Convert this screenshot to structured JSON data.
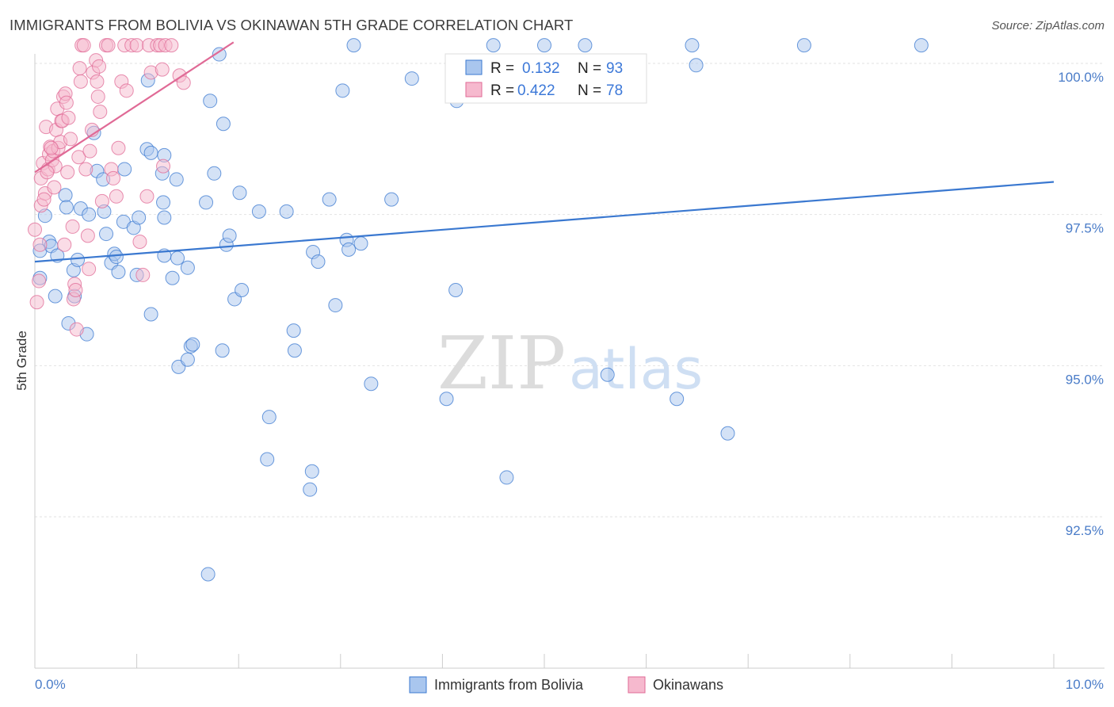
{
  "title": "IMMIGRANTS FROM BOLIVIA VS OKINAWAN 5TH GRADE CORRELATION CHART",
  "source": "Source: ZipAtlas.com",
  "watermark": {
    "zip": "ZIP",
    "atlas": "atlas"
  },
  "legend": {
    "r_label": "R =",
    "n_label": "N =",
    "rows": [
      {
        "r": "0.132",
        "n": "93"
      },
      {
        "r": "0.422",
        "n": "78"
      }
    ]
  },
  "chart_data": {
    "type": "scatter",
    "title": "IMMIGRANTS FROM BOLIVIA VS OKINAWAN 5TH GRADE CORRELATION CHART",
    "xlabel": "",
    "ylabel": "5th Grade",
    "xlim": [
      0,
      10
    ],
    "ylim": [
      90.0,
      100.35
    ],
    "x_tick_labels": {
      "min": "0.0%",
      "max": "10.0%"
    },
    "y_ticks": [
      92.5,
      95.0,
      97.5,
      100.0
    ],
    "y_tick_labels": [
      "92.5%",
      "95.0%",
      "97.5%",
      "100.0%"
    ],
    "grid": true,
    "legend_position": "top-center",
    "colors": {
      "blue": "#3a78d0",
      "pink": "#e06a96",
      "blue_fill": "#a9c6ee",
      "pink_fill": "#f6b9ce"
    },
    "series": [
      {
        "name": "Immigrants from Bolivia",
        "color": "#3a78d0",
        "r": 0.132,
        "n": 93,
        "trend": {
          "x": [
            0.0,
            10.0
          ],
          "y": [
            96.72,
            98.04
          ]
        },
        "points": [
          [
            0.05,
            96.9
          ],
          [
            0.05,
            96.45
          ],
          [
            0.1,
            97.48
          ],
          [
            0.14,
            97.05
          ],
          [
            0.16,
            96.98
          ],
          [
            0.2,
            96.15
          ],
          [
            0.22,
            96.82
          ],
          [
            0.3,
            97.82
          ],
          [
            0.31,
            97.62
          ],
          [
            0.33,
            95.7
          ],
          [
            0.38,
            96.58
          ],
          [
            0.39,
            96.15
          ],
          [
            0.42,
            96.75
          ],
          [
            0.45,
            97.6
          ],
          [
            0.51,
            95.52
          ],
          [
            0.53,
            97.5
          ],
          [
            0.58,
            98.85
          ],
          [
            0.61,
            98.22
          ],
          [
            0.67,
            98.08
          ],
          [
            0.68,
            97.55
          ],
          [
            0.75,
            96.7
          ],
          [
            0.78,
            96.85
          ],
          [
            0.8,
            96.8
          ],
          [
            0.82,
            96.55
          ],
          [
            0.87,
            97.38
          ],
          [
            0.88,
            98.25
          ],
          [
            0.97,
            97.28
          ],
          [
            1.0,
            96.5
          ],
          [
            1.02,
            97.45
          ],
          [
            1.1,
            98.58
          ],
          [
            1.11,
            99.72
          ],
          [
            1.14,
            98.52
          ],
          [
            1.14,
            95.85
          ],
          [
            1.25,
            98.18
          ],
          [
            1.26,
            97.7
          ],
          [
            1.27,
            96.82
          ],
          [
            1.27,
            98.48
          ],
          [
            1.35,
            96.45
          ],
          [
            1.39,
            98.08
          ],
          [
            1.4,
            96.78
          ],
          [
            1.41,
            94.98
          ],
          [
            1.5,
            96.62
          ],
          [
            1.5,
            95.1
          ],
          [
            1.53,
            95.32
          ],
          [
            1.55,
            95.35
          ],
          [
            1.68,
            97.7
          ],
          [
            1.7,
            91.55
          ],
          [
            1.72,
            99.38
          ],
          [
            1.76,
            98.18
          ],
          [
            1.81,
            100.15
          ],
          [
            1.84,
            95.25
          ],
          [
            1.85,
            99.0
          ],
          [
            1.88,
            97.0
          ],
          [
            1.91,
            97.15
          ],
          [
            1.96,
            96.1
          ],
          [
            2.03,
            96.25
          ],
          [
            2.2,
            97.55
          ],
          [
            2.3,
            94.15
          ],
          [
            2.28,
            93.45
          ],
          [
            2.47,
            97.55
          ],
          [
            2.54,
            95.58
          ],
          [
            2.55,
            95.25
          ],
          [
            2.7,
            92.95
          ],
          [
            2.72,
            93.25
          ],
          [
            2.73,
            96.88
          ],
          [
            2.78,
            96.72
          ],
          [
            2.89,
            97.75
          ],
          [
            2.95,
            96.0
          ],
          [
            3.02,
            99.55
          ],
          [
            3.06,
            97.08
          ],
          [
            3.08,
            96.92
          ],
          [
            3.13,
            100.3
          ],
          [
            3.3,
            94.7
          ],
          [
            3.5,
            97.75
          ],
          [
            3.7,
            99.75
          ],
          [
            4.04,
            94.45
          ],
          [
            4.13,
            96.25
          ],
          [
            4.14,
            99.38
          ],
          [
            4.5,
            100.3
          ],
          [
            4.63,
            93.15
          ],
          [
            5.0,
            100.3
          ],
          [
            5.4,
            100.3
          ],
          [
            5.62,
            94.85
          ],
          [
            6.3,
            94.45
          ],
          [
            6.45,
            100.3
          ],
          [
            6.49,
            99.97
          ],
          [
            6.8,
            93.88
          ],
          [
            7.55,
            100.3
          ],
          [
            8.7,
            100.3
          ],
          [
            1.27,
            97.45
          ],
          [
            3.2,
            97.02
          ],
          [
            2.01,
            97.86
          ],
          [
            0.7,
            97.18
          ]
        ]
      },
      {
        "name": "Okinawans",
        "color": "#e06a96",
        "r": 0.422,
        "n": 78,
        "trend": {
          "x": [
            0.0,
            1.95
          ],
          "y": [
            98.2,
            100.35
          ]
        },
        "points": [
          [
            0.0,
            97.25
          ],
          [
            0.02,
            96.05
          ],
          [
            0.04,
            96.4
          ],
          [
            0.05,
            97.0
          ],
          [
            0.06,
            97.65
          ],
          [
            0.06,
            98.1
          ],
          [
            0.08,
            98.35
          ],
          [
            0.1,
            97.85
          ],
          [
            0.11,
            98.95
          ],
          [
            0.13,
            98.25
          ],
          [
            0.14,
            98.5
          ],
          [
            0.15,
            98.62
          ],
          [
            0.17,
            98.4
          ],
          [
            0.18,
            98.55
          ],
          [
            0.2,
            98.3
          ],
          [
            0.21,
            98.9
          ],
          [
            0.22,
            99.25
          ],
          [
            0.23,
            98.6
          ],
          [
            0.25,
            98.7
          ],
          [
            0.26,
            99.05
          ],
          [
            0.27,
            99.05
          ],
          [
            0.28,
            99.45
          ],
          [
            0.3,
            99.5
          ],
          [
            0.31,
            99.35
          ],
          [
            0.33,
            99.1
          ],
          [
            0.35,
            98.75
          ],
          [
            0.37,
            97.3
          ],
          [
            0.38,
            96.1
          ],
          [
            0.39,
            96.35
          ],
          [
            0.4,
            96.25
          ],
          [
            0.41,
            95.6
          ],
          [
            0.43,
            98.45
          ],
          [
            0.44,
            99.92
          ],
          [
            0.45,
            99.7
          ],
          [
            0.46,
            100.3
          ],
          [
            0.48,
            100.3
          ],
          [
            0.5,
            98.25
          ],
          [
            0.52,
            97.15
          ],
          [
            0.53,
            96.6
          ],
          [
            0.54,
            98.55
          ],
          [
            0.56,
            98.9
          ],
          [
            0.57,
            99.85
          ],
          [
            0.6,
            100.05
          ],
          [
            0.61,
            99.7
          ],
          [
            0.62,
            99.45
          ],
          [
            0.63,
            99.95
          ],
          [
            0.64,
            99.2
          ],
          [
            0.7,
            100.3
          ],
          [
            0.72,
            100.3
          ],
          [
            0.75,
            98.25
          ],
          [
            0.77,
            98.1
          ],
          [
            0.8,
            97.8
          ],
          [
            0.82,
            98.6
          ],
          [
            0.85,
            99.7
          ],
          [
            0.88,
            100.3
          ],
          [
            0.9,
            99.55
          ],
          [
            0.95,
            100.3
          ],
          [
            1.0,
            100.3
          ],
          [
            1.03,
            97.05
          ],
          [
            1.06,
            96.5
          ],
          [
            1.1,
            97.8
          ],
          [
            1.12,
            100.3
          ],
          [
            1.14,
            99.85
          ],
          [
            1.2,
            100.3
          ],
          [
            1.23,
            100.3
          ],
          [
            1.25,
            99.9
          ],
          [
            1.26,
            98.3
          ],
          [
            1.28,
            100.3
          ],
          [
            1.34,
            100.3
          ],
          [
            1.42,
            99.8
          ],
          [
            1.46,
            99.68
          ],
          [
            0.12,
            98.2
          ],
          [
            0.09,
            97.75
          ],
          [
            0.16,
            98.6
          ],
          [
            0.32,
            98.2
          ],
          [
            0.19,
            97.95
          ],
          [
            0.29,
            97.0
          ],
          [
            0.66,
            97.72
          ]
        ]
      }
    ]
  },
  "bottom_legend": [
    {
      "label": "Immigrants from Bolivia"
    },
    {
      "label": "Okinawans"
    }
  ]
}
